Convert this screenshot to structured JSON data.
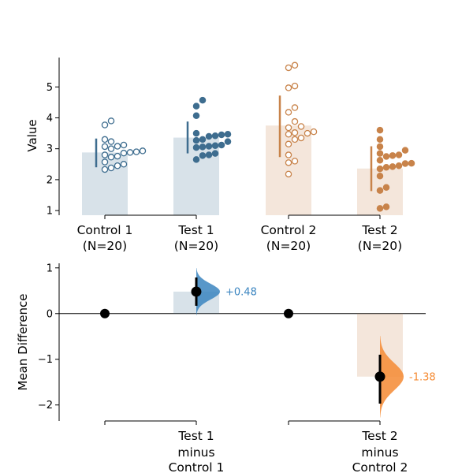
{
  "chart_data": [
    {
      "type": "scatter",
      "panel": "raw-data",
      "ylabel": "Value",
      "ylim": [
        0.85,
        5.95
      ],
      "yticks": [
        1,
        2,
        3,
        4,
        5
      ],
      "groups": [
        {
          "label_line1": "Control 1",
          "label_line2": "(N=20)",
          "color": "#3e6d8f",
          "filled": false,
          "bar_value": 2.88,
          "mean_sd": [
            2.4,
            3.33
          ],
          "points": [
            3.77,
            3.9,
            3.3,
            3.23,
            3.12,
            3.08,
            3.07,
            3.0,
            2.93,
            2.9,
            2.88,
            2.86,
            2.8,
            2.76,
            2.73,
            2.57,
            2.5,
            2.45,
            2.38,
            2.33
          ]
        },
        {
          "label_line1": "Test 1",
          "label_line2": "(N=20)",
          "color": "#3e6d8f",
          "filled": true,
          "bar_value": 3.36,
          "mean_sd": [
            2.85,
            3.88
          ],
          "points": [
            4.57,
            4.38,
            4.07,
            3.5,
            3.47,
            3.45,
            3.42,
            3.4,
            3.3,
            3.27,
            3.23,
            3.12,
            3.1,
            3.08,
            3.06,
            3.04,
            2.85,
            2.8,
            2.78,
            2.65
          ]
        },
        {
          "label_line1": "Control 2",
          "label_line2": "(N=20)",
          "color": "#c8834a",
          "filled": false,
          "bar_value": 3.75,
          "mean_sd": [
            2.73,
            4.72
          ],
          "points": [
            5.7,
            5.62,
            5.03,
            4.97,
            4.33,
            4.18,
            3.88,
            3.72,
            3.68,
            3.55,
            3.52,
            3.5,
            3.47,
            3.35,
            3.3,
            3.15,
            2.8,
            2.6,
            2.55,
            2.18
          ]
        },
        {
          "label_line1": "Test 2",
          "label_line2": "(N=20)",
          "color": "#c8834a",
          "filled": true,
          "bar_value": 2.36,
          "mean_sd": [
            1.63,
            3.08
          ],
          "points": [
            3.6,
            3.3,
            3.07,
            2.95,
            2.85,
            2.8,
            2.78,
            2.75,
            2.63,
            2.53,
            2.52,
            2.45,
            2.42,
            2.4,
            2.35,
            2.12,
            1.75,
            1.65,
            1.12,
            1.07
          ]
        }
      ]
    },
    {
      "type": "scatter",
      "panel": "mean-difference",
      "ylabel": "Mean Difference",
      "ylim": [
        -2.35,
        1.1
      ],
      "yticks": [
        -2,
        -1,
        0,
        1
      ],
      "references": [
        {
          "group_index": 0,
          "value": 0
        },
        {
          "group_index": 2,
          "value": 0
        }
      ],
      "contrasts": [
        {
          "group_index": 1,
          "label_line1": "Test 1",
          "label_line2": "minus",
          "label_line3": "Control 1",
          "mean_diff": 0.48,
          "ci": [
            0.17,
            0.79
          ],
          "annotation": "+0.48",
          "color": "#3b85c0",
          "bar_color": "#3e6d8f"
        },
        {
          "group_index": 3,
          "label_line1": "Test 2",
          "label_line2": "minus",
          "label_line3": "Control 2",
          "mean_diff": -1.38,
          "ci": [
            -1.97,
            -0.9
          ],
          "annotation": "-1.38",
          "color": "#f58a32",
          "bar_color": "#c8834a"
        }
      ]
    }
  ]
}
